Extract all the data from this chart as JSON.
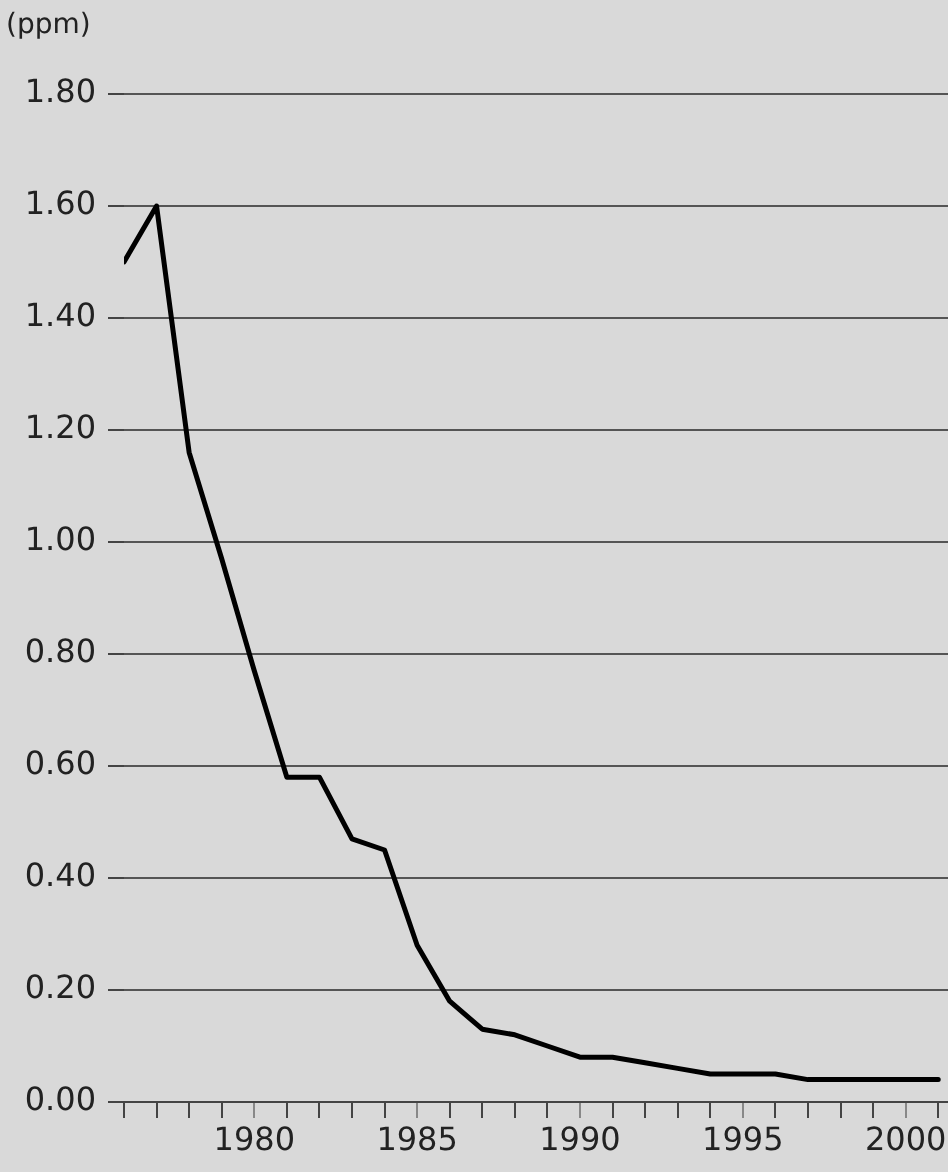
{
  "chart_data": {
    "type": "line",
    "ylabel": "(ppm)",
    "x": [
      1976,
      1977,
      1978,
      1979,
      1980,
      1981,
      1982,
      1983,
      1984,
      1985,
      1986,
      1987,
      1988,
      1989,
      1990,
      1991,
      1992,
      1993,
      1994,
      1995,
      1996,
      1997,
      1998,
      1999,
      2000,
      2001
    ],
    "series": [
      {
        "color": "#000000",
        "values": [
          1.5,
          1.6,
          1.16,
          0.97,
          0.77,
          0.58,
          0.58,
          0.47,
          0.45,
          0.28,
          0.18,
          0.13,
          0.12,
          0.1,
          0.08,
          0.08,
          0.07,
          0.06,
          0.05,
          0.05,
          0.05,
          0.04,
          0.04,
          0.04,
          0.04,
          0.04
        ]
      }
    ],
    "xlim": [
      1976,
      2001.3
    ],
    "xticks": [
      {
        "value": 1976,
        "label": null
      },
      {
        "value": 1977,
        "label": null
      },
      {
        "value": 1978,
        "label": null
      },
      {
        "value": 1979,
        "label": null
      },
      1980,
      {
        "value": 1981,
        "label": null
      },
      {
        "value": 1982,
        "label": null
      },
      {
        "value": 1983,
        "label": null
      },
      {
        "value": 1984,
        "label": null
      },
      1985,
      {
        "value": 1986,
        "label": null
      },
      {
        "value": 1987,
        "label": null
      },
      {
        "value": 1988,
        "label": null
      },
      {
        "value": 1989,
        "label": null
      },
      1990,
      {
        "value": 1991,
        "label": null
      },
      {
        "value": 1992,
        "label": null
      },
      {
        "value": 1993,
        "label": null
      },
      {
        "value": 1994,
        "label": null
      },
      1995,
      {
        "value": 1996,
        "label": null
      },
      {
        "value": 1997,
        "label": null
      },
      {
        "value": 1998,
        "label": null
      },
      {
        "value": 1999,
        "label": null
      },
      2000,
      {
        "value": 2001,
        "label": null
      }
    ],
    "ylim": [
      0,
      1.8
    ],
    "yticks": [
      {
        "value": 0,
        "label": "0.00"
      },
      {
        "value": 0.2,
        "label": "0.20"
      },
      {
        "value": 0.4,
        "label": "0.40"
      },
      {
        "value": 0.6,
        "label": "0.60"
      },
      {
        "value": 0.8,
        "label": "0.80"
      },
      {
        "value": 1,
        "label": "1.00"
      },
      {
        "value": 1.2,
        "label": "1.20"
      },
      {
        "value": 1.4,
        "label": "1.40"
      },
      {
        "value": 1.6,
        "label": "1.60"
      },
      {
        "value": 1.8,
        "label": "1.80"
      }
    ],
    "grid": "y",
    "legend": false,
    "marker": "none",
    "line_style": "solid"
  }
}
